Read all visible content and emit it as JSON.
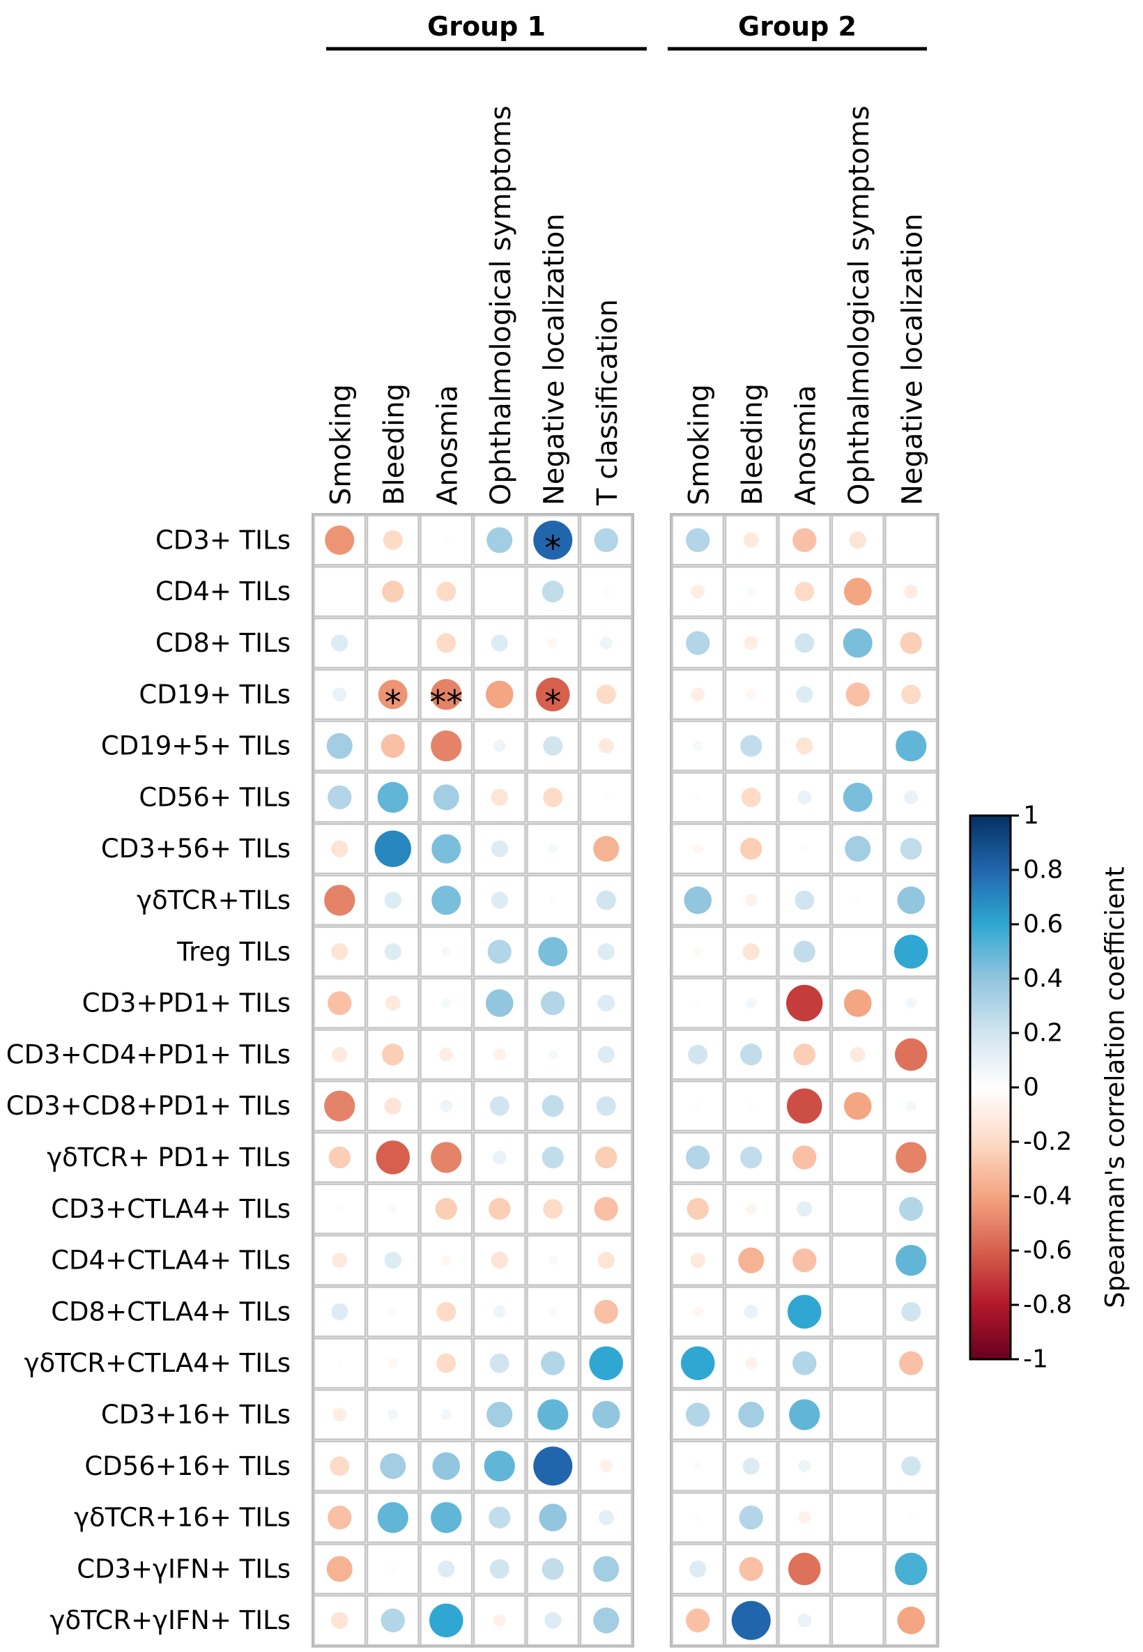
{
  "chart_data": {
    "type": "heatmap",
    "subtype": "correlation-circle-matrix",
    "rows": [
      "CD3+ TILs",
      "CD4+ TILs",
      "CD8+ TILs",
      "CD19+ TILs",
      "CD19+5+ TILs",
      "CD56+ TILs",
      "CD3+56+ TILs",
      "γδTCR+TILs",
      "Treg TILs",
      "CD3+PD1+ TILs",
      "CD3+CD4+PD1+ TILs",
      "CD3+CD8+PD1+ TILs",
      "γδTCR+ PD1+ TILs",
      "CD3+CTLA4+ TILs",
      "CD4+CTLA4+ TILs",
      "CD8+CTLA4+ TILs",
      "γδTCR+CTLA4+ TILs",
      "CD3+16+ TILs",
      "CD56+16+ TILs",
      "γδTCR+16+ TILs",
      "CD3+γIFN+ TILs",
      "γδTCR+γIFN+ TILs"
    ],
    "groups": [
      {
        "name": "Group 1",
        "columns": [
          "Smoking",
          "Bleeding",
          "Anosmia",
          "Ophthalmological symptoms",
          "Negative localization",
          "T classification"
        ],
        "values": [
          [
            -0.45,
            -0.2,
            0.02,
            0.35,
            0.8,
            0.3
          ],
          [
            0,
            -0.25,
            -0.2,
            0,
            0.25,
            0.02
          ],
          [
            0.15,
            0,
            -0.2,
            0.15,
            -0.05,
            0.08
          ],
          [
            0.1,
            -0.45,
            -0.5,
            -0.4,
            -0.6,
            -0.2
          ],
          [
            0.35,
            -0.3,
            -0.5,
            0.08,
            0.2,
            -0.12
          ],
          [
            0.3,
            0.5,
            0.35,
            -0.15,
            -0.2,
            -0.02
          ],
          [
            -0.15,
            0.7,
            0.45,
            0.15,
            0.05,
            -0.35
          ],
          [
            -0.5,
            0.15,
            0.45,
            0.15,
            0.02,
            0.2
          ],
          [
            -0.15,
            0.15,
            0.05,
            0.3,
            0.45,
            0.15
          ],
          [
            -0.3,
            -0.12,
            0.05,
            0.4,
            0.3,
            0.15
          ],
          [
            -0.12,
            -0.25,
            -0.1,
            -0.08,
            0.05,
            0.15
          ],
          [
            -0.5,
            -0.15,
            0.08,
            0.2,
            0.25,
            0.2
          ],
          [
            -0.25,
            -0.6,
            -0.5,
            0.1,
            0.25,
            -0.25
          ],
          [
            0.02,
            0.04,
            -0.25,
            -0.25,
            -0.2,
            -0.3
          ],
          [
            -0.12,
            0.15,
            -0.05,
            -0.15,
            0.04,
            -0.15
          ],
          [
            0.15,
            0.03,
            -0.2,
            0.08,
            0.04,
            -0.3
          ],
          [
            0.02,
            -0.05,
            -0.2,
            0.2,
            0.3,
            0.6
          ],
          [
            -0.1,
            0.06,
            0.06,
            0.35,
            0.5,
            0.4
          ],
          [
            -0.2,
            0.35,
            0.4,
            0.5,
            0.8,
            -0.08
          ],
          [
            -0.3,
            0.5,
            0.5,
            0.25,
            0.4,
            0.12
          ],
          [
            -0.35,
            0.02,
            0.15,
            0.2,
            0.25,
            0.35
          ],
          [
            -0.15,
            0.3,
            0.6,
            -0.08,
            0.15,
            0.35
          ]
        ],
        "significance": [
          [
            "",
            "",
            "",
            "",
            "*",
            ""
          ],
          [
            "",
            "",
            "",
            "",
            "",
            ""
          ],
          [
            "",
            "",
            "",
            "",
            "",
            ""
          ],
          [
            "",
            "*",
            "**",
            "",
            "*",
            ""
          ],
          [
            "",
            "",
            "",
            "",
            "",
            ""
          ],
          [
            "",
            "",
            "",
            "",
            "",
            ""
          ],
          [
            "",
            "",
            "",
            "",
            "",
            ""
          ],
          [
            "",
            "",
            "",
            "",
            "",
            ""
          ],
          [
            "",
            "",
            "",
            "",
            "",
            ""
          ],
          [
            "",
            "",
            "",
            "",
            "",
            ""
          ],
          [
            "",
            "",
            "",
            "",
            "",
            ""
          ],
          [
            "",
            "",
            "",
            "",
            "",
            ""
          ],
          [
            "",
            "",
            "",
            "",
            "",
            ""
          ],
          [
            "",
            "",
            "",
            "",
            "",
            ""
          ],
          [
            "",
            "",
            "",
            "",
            "",
            ""
          ],
          [
            "",
            "",
            "",
            "",
            "",
            ""
          ],
          [
            "",
            "",
            "",
            "",
            "",
            ""
          ],
          [
            "",
            "",
            "",
            "",
            "",
            ""
          ],
          [
            "",
            "",
            "",
            "",
            "",
            ""
          ],
          [
            "",
            "",
            "",
            "",
            "",
            ""
          ],
          [
            "",
            "",
            "",
            "",
            "",
            ""
          ],
          [
            "",
            "",
            "",
            "",
            "",
            ""
          ]
        ]
      },
      {
        "name": "Group 2",
        "columns": [
          "Smoking",
          "Bleeding",
          "Anosmia",
          "Ophthalmological symptoms",
          "Negative localization"
        ],
        "values": [
          [
            0.3,
            -0.12,
            -0.3,
            -0.15,
            0
          ],
          [
            -0.1,
            0.04,
            -0.2,
            -0.4,
            -0.1
          ],
          [
            0.3,
            -0.1,
            0.2,
            0.45,
            -0.25
          ],
          [
            -0.1,
            -0.05,
            0.15,
            -0.3,
            -0.2
          ],
          [
            0.05,
            0.25,
            -0.15,
            0,
            0.5
          ],
          [
            0.02,
            -0.2,
            0.1,
            0.45,
            0.1
          ],
          [
            -0.05,
            -0.25,
            0.02,
            0.35,
            0.25
          ],
          [
            0.4,
            -0.08,
            0.2,
            0.02,
            0.4
          ],
          [
            -0.04,
            -0.15,
            0.25,
            0,
            0.6
          ],
          [
            0.02,
            0.06,
            -0.7,
            -0.4,
            0.06
          ],
          [
            0.2,
            0.25,
            -0.25,
            -0.12,
            -0.55
          ],
          [
            0.02,
            0.02,
            -0.65,
            -0.4,
            0.06
          ],
          [
            0.3,
            0.25,
            -0.3,
            0,
            -0.5
          ],
          [
            -0.25,
            -0.06,
            0.12,
            0,
            0.3
          ],
          [
            -0.12,
            -0.35,
            -0.3,
            0,
            0.5
          ],
          [
            -0.05,
            0.1,
            0.6,
            0,
            0.2
          ],
          [
            0.6,
            -0.08,
            0.3,
            0,
            -0.3
          ],
          [
            0.3,
            0.35,
            0.5,
            0,
            0
          ],
          [
            0.03,
            0.15,
            0.08,
            0,
            0.2
          ],
          [
            0.02,
            0.3,
            -0.08,
            0,
            0.02
          ],
          [
            0.15,
            -0.3,
            -0.55,
            0,
            0.55
          ],
          [
            -0.3,
            0.8,
            0.1,
            0,
            -0.4
          ]
        ],
        "significance": [
          [
            "",
            "",
            "",
            "",
            ""
          ],
          [
            "",
            "",
            "",
            "",
            ""
          ],
          [
            "",
            "",
            "",
            "",
            ""
          ],
          [
            "",
            "",
            "",
            "",
            ""
          ],
          [
            "",
            "",
            "",
            "",
            ""
          ],
          [
            "",
            "",
            "",
            "",
            ""
          ],
          [
            "",
            "",
            "",
            "",
            ""
          ],
          [
            "",
            "",
            "",
            "",
            ""
          ],
          [
            "",
            "",
            "",
            "",
            ""
          ],
          [
            "",
            "",
            "",
            "",
            ""
          ],
          [
            "",
            "",
            "",
            "",
            ""
          ],
          [
            "",
            "",
            "",
            "",
            ""
          ],
          [
            "",
            "",
            "",
            "",
            ""
          ],
          [
            "",
            "",
            "",
            "",
            ""
          ],
          [
            "",
            "",
            "",
            "",
            ""
          ],
          [
            "",
            "",
            "",
            "",
            ""
          ],
          [
            "",
            "",
            "",
            "",
            ""
          ],
          [
            "",
            "",
            "",
            "",
            ""
          ],
          [
            "",
            "",
            "",
            "",
            ""
          ],
          [
            "",
            "",
            "",
            "",
            ""
          ],
          [
            "",
            "",
            "",
            "",
            ""
          ],
          [
            "",
            "",
            "",
            "",
            ""
          ]
        ]
      }
    ],
    "colorbar": {
      "title": "Spearman's correlation coefficient",
      "range": [
        -1,
        1
      ],
      "tick_values": [
        1,
        0.8,
        0.6,
        0.4,
        0.2,
        0,
        -0.2,
        -0.4,
        -0.6,
        -0.8,
        -1
      ],
      "tick_labels": [
        "1",
        "0.8",
        "0.6",
        "0.4",
        "0.2",
        "0",
        "-0.2",
        "-0.4",
        "-0.6",
        "-0.8",
        "-1"
      ],
      "colormap": {
        "-1": "#67001f",
        "-0.8": "#b2182b",
        "-0.6": "#d6604d",
        "-0.4": "#f4a582",
        "-0.2": "#fddbc7",
        "0": "#ffffff",
        "0.2": "#d1e5f0",
        "0.4": "#92c5de",
        "0.6": "#2fa7d2",
        "0.8": "#2166ac",
        "1": "#053061"
      }
    }
  }
}
